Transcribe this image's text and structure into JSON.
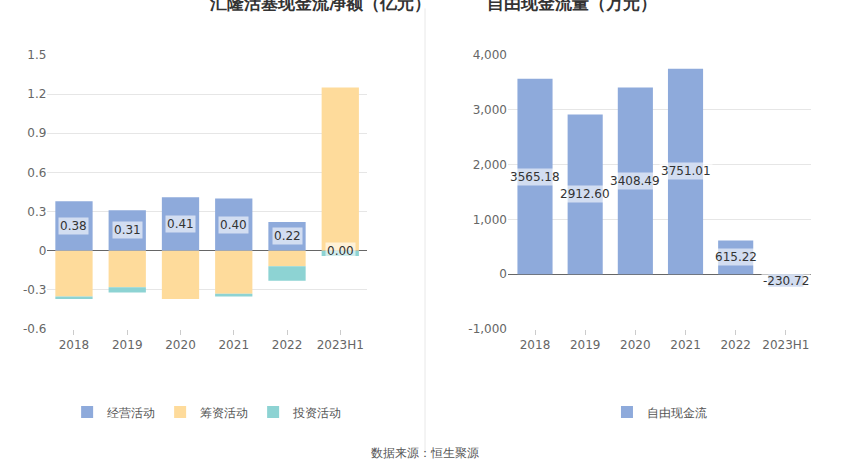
{
  "source": "数据来源：恒生聚源",
  "chart_data": [
    {
      "type": "bar",
      "title": "汇隆活塞现金流净额（亿元）",
      "stacked": true,
      "data_labels": true,
      "grid": true,
      "legend": "bottom",
      "categories": [
        "2018",
        "2019",
        "2020",
        "2021",
        "2022",
        "2023H1"
      ],
      "series": [
        {
          "name": "经营活动",
          "color": "#8eaadb",
          "values": [
            0.38,
            0.31,
            0.41,
            0.4,
            0.22,
            0.0
          ],
          "value_labels": [
            "0.38",
            "0.31",
            "0.41",
            "0.40",
            "0.22",
            "0.00"
          ]
        },
        {
          "name": "筹资活动",
          "color": "#fedb9b",
          "values": [
            -0.35,
            -0.28,
            -0.37,
            -0.33,
            -0.12,
            1.25
          ]
        },
        {
          "name": "投资活动",
          "color": "#8dd3d3",
          "values": [
            -0.02,
            -0.04,
            0.0,
            -0.02,
            -0.11,
            -0.04
          ]
        }
      ],
      "ylim": [
        -0.6,
        1.5
      ],
      "yticks": [
        -0.6,
        -0.3,
        0,
        0.3,
        0.6,
        0.9,
        1.2,
        1.5
      ]
    },
    {
      "type": "bar",
      "title": "自由现金流量（万元）",
      "data_labels": true,
      "grid": true,
      "legend": "bottom",
      "categories": [
        "2018",
        "2019",
        "2020",
        "2021",
        "2022",
        "2023H1"
      ],
      "series": [
        {
          "name": "自由现金流",
          "color": "#8eaadb",
          "values": [
            3565.18,
            2912.6,
            3408.49,
            3751.01,
            615.22,
            -230.72
          ],
          "value_labels": [
            "3565.18",
            "2912.60",
            "3408.49",
            "3751.01",
            "615.22",
            "-230.72"
          ]
        }
      ],
      "ylim": [
        -1000,
        4000
      ],
      "yticks": [
        {
          "value": -1000,
          "label": "-1,000"
        },
        0,
        {
          "value": 1000,
          "label": "1,000"
        },
        {
          "value": 2000,
          "label": "2,000"
        },
        {
          "value": 3000,
          "label": "3,000"
        },
        {
          "value": 4000,
          "label": "4,000"
        }
      ]
    }
  ]
}
